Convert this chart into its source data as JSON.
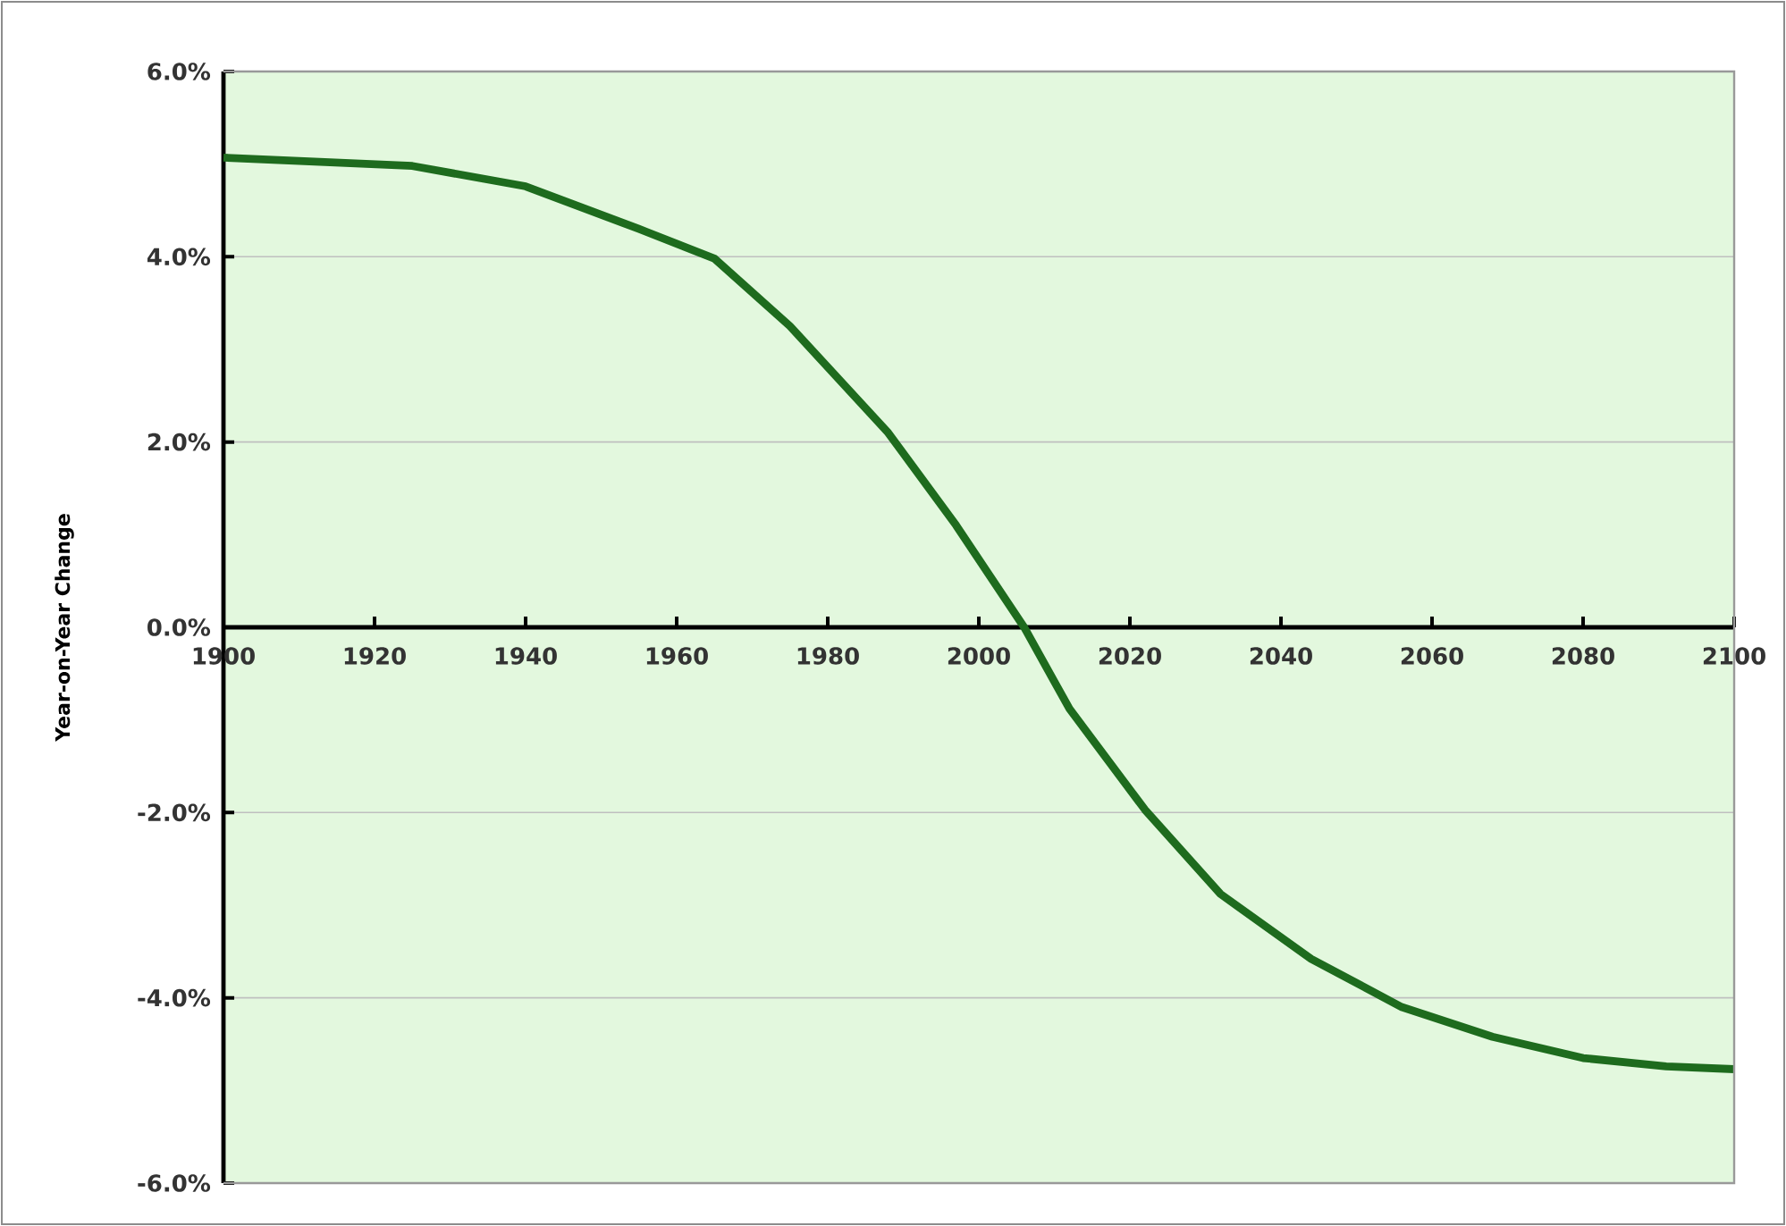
{
  "chart_data": {
    "type": "line",
    "ylabel": "Year-on-Year Change",
    "x": [
      1900,
      1925,
      1940,
      1955,
      1965,
      1975,
      1988,
      1997,
      2006,
      2012,
      2022,
      2032,
      2044,
      2056,
      2068,
      2080,
      2091,
      2100
    ],
    "series": [
      {
        "color": "#1e6b1e",
        "values": [
          5.07,
          4.98,
          4.76,
          4.3,
          3.98,
          3.25,
          2.1,
          1.1,
          0,
          -0.88,
          -1.97,
          -2.88,
          -3.58,
          -4.1,
          -4.42,
          -4.65,
          -4.74,
          -4.77
        ]
      }
    ],
    "xlim": [
      1900,
      2100
    ],
    "xticks": [
      1900,
      1920,
      1940,
      1960,
      1980,
      2000,
      2020,
      2040,
      2060,
      2080,
      2100
    ],
    "ylim": [
      -6,
      6
    ],
    "yticks": [
      {
        "value": -6,
        "label": "-6.0%"
      },
      {
        "value": -4,
        "label": "-4.0%"
      },
      {
        "value": -2,
        "label": "-2.0%"
      },
      {
        "value": 0,
        "label": "0.0%"
      },
      {
        "value": 2,
        "label": "2.0%"
      },
      {
        "value": 4,
        "label": "4.0%"
      },
      {
        "value": 6,
        "label": "6.0%"
      }
    ],
    "grid": "y"
  }
}
